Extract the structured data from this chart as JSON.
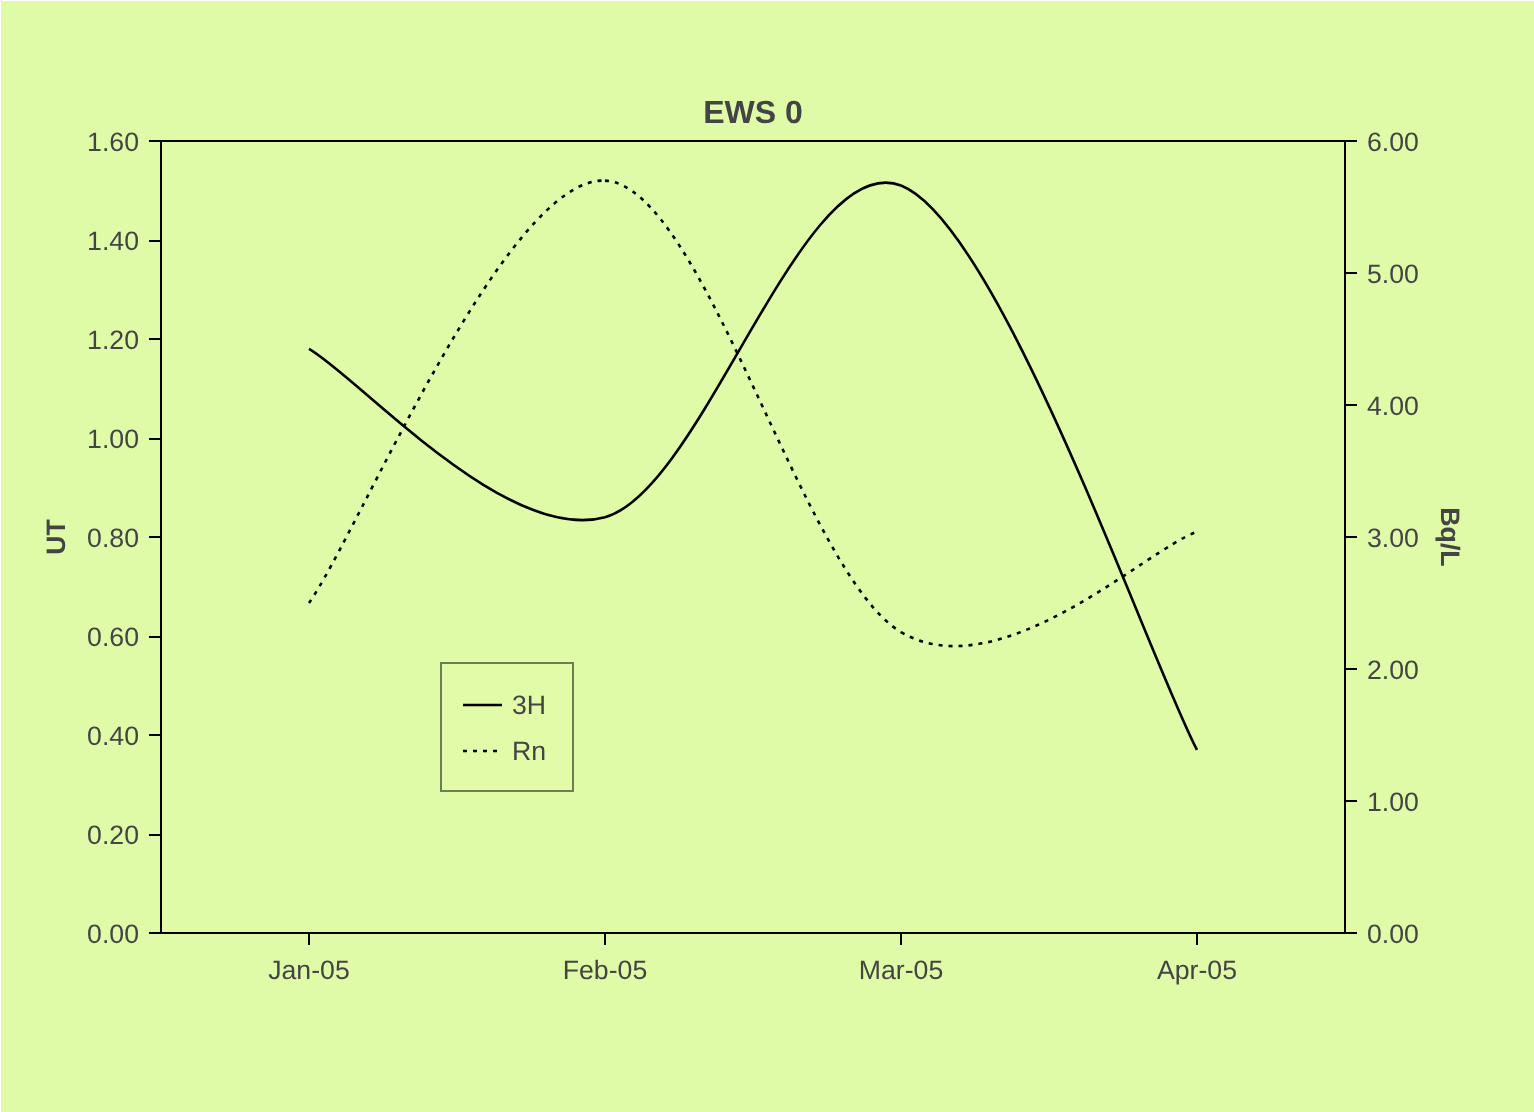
{
  "chart_data": {
    "type": "line",
    "title": "EWS 0",
    "ylabel": "UT",
    "y2label": "Bq/L",
    "categories": [
      "Jan-05",
      "Feb-05",
      "Mar-05",
      "Apr-05"
    ],
    "series": [
      {
        "name": "3H",
        "color": "#000000",
        "line_style": "solid",
        "values": [
          1.18,
          0.84,
          1.51,
          0.37
        ]
      },
      {
        "name": "Rn",
        "color": "#000000",
        "line_style": "dotted",
        "axis": "y2",
        "values": [
          2.5,
          5.7,
          2.28,
          3.04
        ]
      }
    ],
    "ylim": [
      0,
      1.6
    ],
    "yticks": [
      {
        "value": 0,
        "label": "0.00"
      },
      {
        "value": 0.2,
        "label": "0.20"
      },
      {
        "value": 0.4,
        "label": "0.40"
      },
      {
        "value": 0.6,
        "label": "0.60"
      },
      {
        "value": 0.8,
        "label": "0.80"
      },
      {
        "value": 1.0,
        "label": "1.00"
      },
      {
        "value": 1.2,
        "label": "1.20"
      },
      {
        "value": 1.4,
        "label": "1.40"
      },
      {
        "value": 1.6,
        "label": "1.60"
      }
    ],
    "y2lim": [
      0,
      6
    ],
    "y2ticks": [
      {
        "value": 0,
        "label": "0.00"
      },
      {
        "value": 1,
        "label": "1.00"
      },
      {
        "value": 2,
        "label": "2.00"
      },
      {
        "value": 3,
        "label": "3.00"
      },
      {
        "value": 4,
        "label": "4.00"
      },
      {
        "value": 5,
        "label": "5.00"
      },
      {
        "value": 6,
        "label": "6.00"
      }
    ],
    "grid": false,
    "legend": "center left",
    "marker": "none"
  }
}
